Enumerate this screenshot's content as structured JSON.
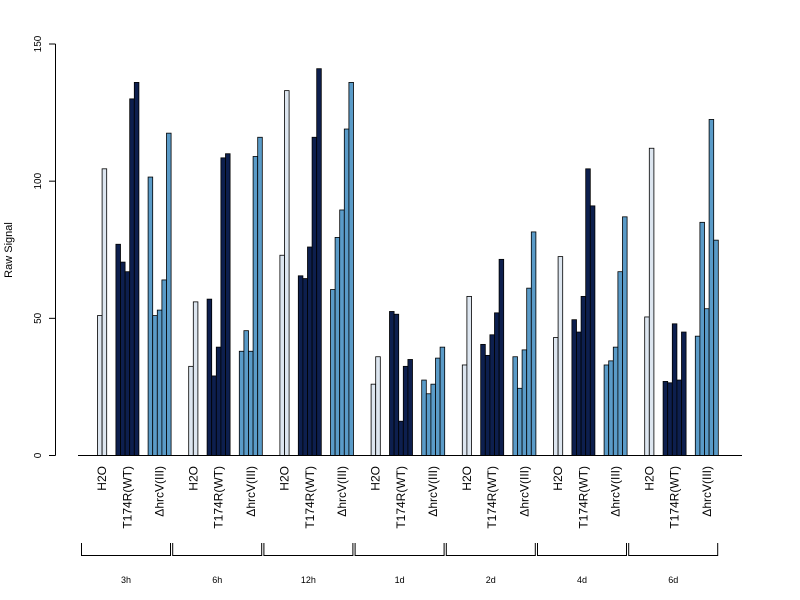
{
  "chart_data": {
    "type": "bar",
    "ylabel": "Raw Signal",
    "ylim": [
      0,
      150
    ],
    "yticks": [
      0,
      50,
      100,
      150
    ],
    "colors": {
      "H2O": "#dde6f0",
      "T174R(WT)": "#0d1f4e",
      "ΔhrcV(III)": "#5a9bc8"
    },
    "groups": [
      {
        "time": "3h",
        "series": [
          {
            "name": "H2O",
            "values": [
              51,
              104.5
            ]
          },
          {
            "name": "T174R(WT)",
            "values": [
              77,
              70.5,
              67,
              130,
              136
            ]
          },
          {
            "name": "ΔhrcV(III)",
            "values": [
              101.5,
              51,
              53,
              64,
              117.5
            ]
          }
        ]
      },
      {
        "time": "6h",
        "series": [
          {
            "name": "H2O",
            "values": [
              32.5,
              56
            ]
          },
          {
            "name": "T174R(WT)",
            "values": [
              57,
              29,
              39.5,
              108.5,
              110
            ]
          },
          {
            "name": "ΔhrcV(III)",
            "values": [
              38,
              45.5,
              38,
              109,
              116
            ]
          }
        ]
      },
      {
        "time": "12h",
        "series": [
          {
            "name": "H2O",
            "values": [
              73,
              133
            ]
          },
          {
            "name": "T174R(WT)",
            "values": [
              65.5,
              64.5,
              76,
              116,
              141
            ]
          },
          {
            "name": "ΔhrcV(III)",
            "values": [
              60.5,
              79.5,
              89.5,
              119,
              136
            ]
          }
        ]
      },
      {
        "time": "1d",
        "series": [
          {
            "name": "H2O",
            "values": [
              26,
              36
            ]
          },
          {
            "name": "T174R(WT)",
            "values": [
              52.5,
              51.5,
              12.5,
              32.5,
              35
            ]
          },
          {
            "name": "ΔhrcV(III)",
            "values": [
              27.5,
              22.5,
              26,
              35.5,
              39.5
            ]
          }
        ]
      },
      {
        "time": "2d",
        "series": [
          {
            "name": "H2O",
            "values": [
              33,
              58
            ]
          },
          {
            "name": "T174R(WT)",
            "values": [
              40.5,
              36.5,
              44,
              52,
              71.5
            ]
          },
          {
            "name": "ΔhrcV(III)",
            "values": [
              36,
              24.5,
              38.5,
              61,
              81.5
            ]
          }
        ]
      },
      {
        "time": "4d",
        "series": [
          {
            "name": "H2O",
            "values": [
              43,
              72.5
            ]
          },
          {
            "name": "T174R(WT)",
            "values": [
              49.5,
              45,
              58,
              104.5,
              91
            ]
          },
          {
            "name": "ΔhrcV(III)",
            "values": [
              33,
              34.5,
              39.5,
              67,
              87
            ]
          }
        ]
      },
      {
        "time": "6d",
        "series": [
          {
            "name": "H2O",
            "values": [
              50.5,
              112
            ]
          },
          {
            "name": "T174R(WT)",
            "values": [
              27,
              26.5,
              48,
              27.5,
              45
            ]
          },
          {
            "name": "ΔhrcV(III)",
            "values": [
              43.5,
              85,
              53.5,
              122.5,
              78.5
            ]
          }
        ]
      }
    ]
  }
}
